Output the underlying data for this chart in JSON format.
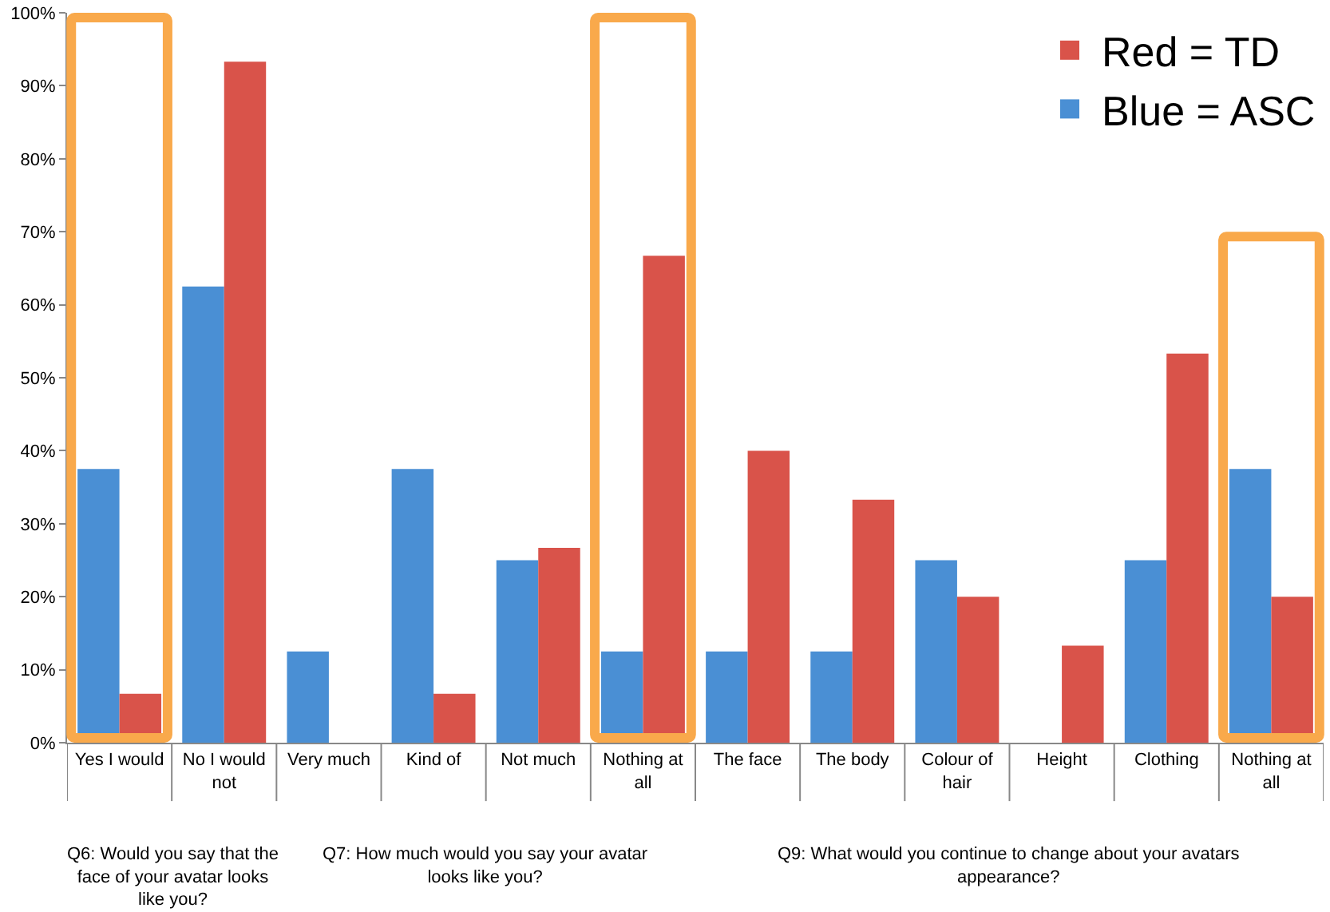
{
  "chart_data": {
    "type": "bar",
    "categories": [
      "Yes I would",
      "No I would not",
      "Very much",
      "Kind of",
      "Not much",
      "Nothing at all",
      "The face",
      "The body",
      "Colour of hair",
      "Height",
      "Clothing",
      "Nothing at all"
    ],
    "series": [
      {
        "name": "Blue = ASC",
        "color": "#4a8fd4",
        "values": [
          37.5,
          62.5,
          12.5,
          37.5,
          25,
          12.5,
          12.5,
          12.5,
          25,
          0,
          25,
          37.5
        ]
      },
      {
        "name": "Red = TD",
        "color": "#d9534a",
        "values": [
          6.7,
          93.3,
          0,
          6.7,
          26.7,
          66.7,
          40,
          33.3,
          20,
          13.3,
          53.3,
          20
        ]
      }
    ],
    "ylim": [
      0,
      100
    ],
    "yticks": [
      {
        "value": 0,
        "label": "0%"
      },
      {
        "value": 10,
        "label": "10%"
      },
      {
        "value": 20,
        "label": "20%"
      },
      {
        "value": 30,
        "label": "30%"
      },
      {
        "value": 40,
        "label": "40%"
      },
      {
        "value": 50,
        "label": "50%"
      },
      {
        "value": 60,
        "label": "60%"
      },
      {
        "value": 70,
        "label": "70%"
      },
      {
        "value": 80,
        "label": "80%"
      },
      {
        "value": 90,
        "label": "90%"
      },
      {
        "value": 100,
        "label": "100%"
      }
    ],
    "legend": "top right",
    "annotations": [
      "Q6: Would you say that the face of your avatar looks like you?",
      "Q7: How much would you say your avatar looks like you?",
      "Q9: What would you continue to change about your avatars appearance?"
    ]
  }
}
